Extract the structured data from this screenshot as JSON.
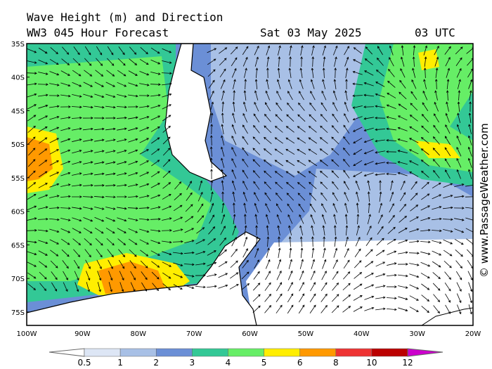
{
  "header": {
    "title": "Wave Height (m) and Direction",
    "model": "WW3 045 Hour Forecast",
    "date": "Sat 03 May 2025",
    "time": "03 UTC"
  },
  "lat_labels": [
    "35S",
    "40S",
    "45S",
    "50S",
    "55S",
    "60S",
    "65S",
    "70S",
    "75S"
  ],
  "lon_labels": [
    "100W",
    "90W",
    "80W",
    "70W",
    "60W",
    "50W",
    "40W",
    "30W",
    "20W"
  ],
  "colorbar": {
    "labels": [
      "0.5",
      "1",
      "2",
      "3",
      "4",
      "5",
      "6",
      "8",
      "10",
      "12"
    ],
    "colors": [
      "#dde6f5",
      "#a8c0e6",
      "#6b8fd6",
      "#33c896",
      "#66ee66",
      "#ffee00",
      "#ff9900",
      "#ee3333",
      "#bb0000"
    ],
    "low_color": "#ffffff",
    "high_color": "#cc00cc"
  },
  "watermark": "© www.PassageWeather.com"
}
